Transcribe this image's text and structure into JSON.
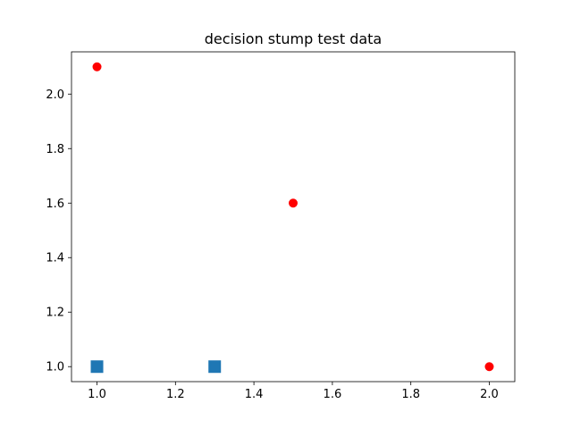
{
  "chart_data": {
    "type": "scatter",
    "title": "decision stump test data",
    "xlabel": "",
    "ylabel": "",
    "xlim": [
      0.935,
      2.065
    ],
    "ylim": [
      0.945,
      2.155
    ],
    "x_ticks": [
      1.0,
      1.2,
      1.4,
      1.6,
      1.8,
      2.0
    ],
    "x_tick_labels": [
      "1.0",
      "1.2",
      "1.4",
      "1.6",
      "1.8",
      "2.0"
    ],
    "y_ticks": [
      1.0,
      1.2,
      1.4,
      1.6,
      1.8,
      2.0
    ],
    "y_tick_labels": [
      "1.0",
      "1.2",
      "1.4",
      "1.6",
      "1.8",
      "2.0"
    ],
    "grid": false,
    "series": [
      {
        "marker": "square",
        "color": "#1f77b4",
        "points": [
          {
            "x": 1.0,
            "y": 1.0
          },
          {
            "x": 1.3,
            "y": 1.0
          }
        ]
      },
      {
        "marker": "circle",
        "color": "#ff0000",
        "points": [
          {
            "x": 1.0,
            "y": 2.1
          },
          {
            "x": 1.5,
            "y": 1.6
          },
          {
            "x": 2.0,
            "y": 1.0
          }
        ]
      }
    ]
  }
}
